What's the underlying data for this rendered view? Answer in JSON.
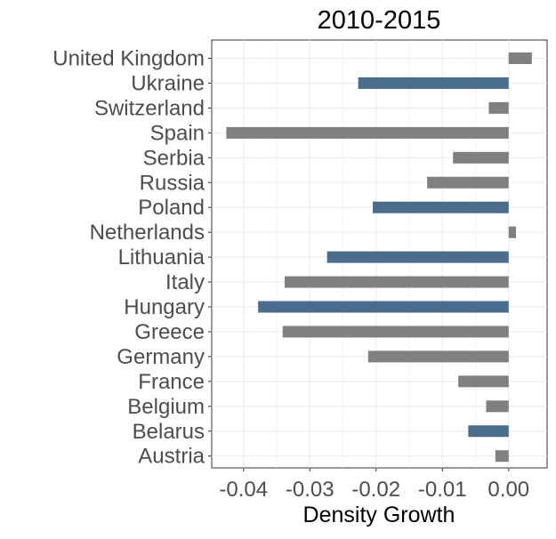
{
  "chart_data": {
    "type": "bar",
    "orientation": "horizontal",
    "title": "2010-2015",
    "xlabel": "Density Growth",
    "ylabel": "",
    "xlim": [
      -0.0448,
      0.0058
    ],
    "x_ticks": [
      -0.04,
      -0.03,
      -0.02,
      -0.01,
      0.0
    ],
    "x_tick_labels": [
      "-0.04",
      "-0.03",
      "-0.02",
      "-0.01",
      "0.00"
    ],
    "grid": true,
    "legend": "none",
    "categories": [
      "United Kingdom",
      "Ukraine",
      "Switzerland",
      "Spain",
      "Serbia",
      "Russia",
      "Poland",
      "Netherlands",
      "Lithuania",
      "Italy",
      "Hungary",
      "Greece",
      "Germany",
      "France",
      "Belgium",
      "Belarus",
      "Austria"
    ],
    "values": [
      0.0035,
      -0.0227,
      -0.003,
      -0.0426,
      -0.0084,
      -0.0123,
      -0.0205,
      0.0011,
      -0.0274,
      -0.0338,
      -0.0378,
      -0.0341,
      -0.0212,
      -0.0076,
      -0.0034,
      -0.0061,
      -0.002
    ],
    "highlighted": [
      false,
      true,
      false,
      false,
      false,
      false,
      true,
      false,
      true,
      false,
      true,
      false,
      false,
      false,
      false,
      true,
      false
    ],
    "colors": {
      "default": "#808080",
      "highlight": "#4a6d8c",
      "grid": "#ebebeb",
      "axis_text": "#4d4d4d"
    }
  }
}
